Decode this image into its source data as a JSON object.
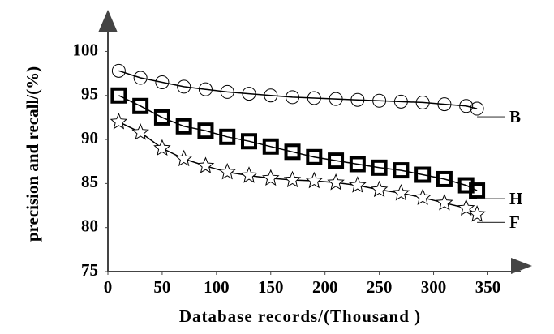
{
  "chart_data": {
    "type": "line",
    "x_label": "Database records/(Thousand )",
    "y_label": "precision and recall/(%)",
    "x": [
      10,
      30,
      50,
      70,
      90,
      110,
      130,
      150,
      170,
      190,
      210,
      230,
      250,
      270,
      290,
      310,
      330,
      340
    ],
    "series": [
      {
        "name": "B",
        "color": "#000000",
        "marker": "circle",
        "values": [
          97.8,
          97.0,
          96.5,
          96.0,
          95.7,
          95.4,
          95.2,
          95.0,
          94.8,
          94.7,
          94.6,
          94.5,
          94.4,
          94.3,
          94.2,
          94.0,
          93.8,
          93.5
        ]
      },
      {
        "name": "H",
        "color": "#000000",
        "marker": "square",
        "values": [
          95.0,
          93.8,
          92.5,
          91.5,
          91.0,
          90.3,
          89.8,
          89.2,
          88.6,
          88.0,
          87.6,
          87.2,
          86.8,
          86.5,
          86.0,
          85.5,
          84.8,
          84.2
        ]
      },
      {
        "name": "F",
        "color": "#000000",
        "marker": "star",
        "values": [
          92.0,
          90.8,
          89.0,
          87.8,
          87.0,
          86.3,
          85.9,
          85.6,
          85.4,
          85.3,
          85.1,
          84.8,
          84.3,
          83.9,
          83.4,
          82.8,
          82.2,
          81.5
        ]
      }
    ],
    "xlim": [
      0,
      390
    ],
    "ylim": [
      75,
      104
    ],
    "xticks": [
      0,
      50,
      100,
      150,
      200,
      250,
      300,
      350
    ],
    "yticks": [
      75,
      80,
      85,
      90,
      95,
      100
    ],
    "grid": false
  }
}
